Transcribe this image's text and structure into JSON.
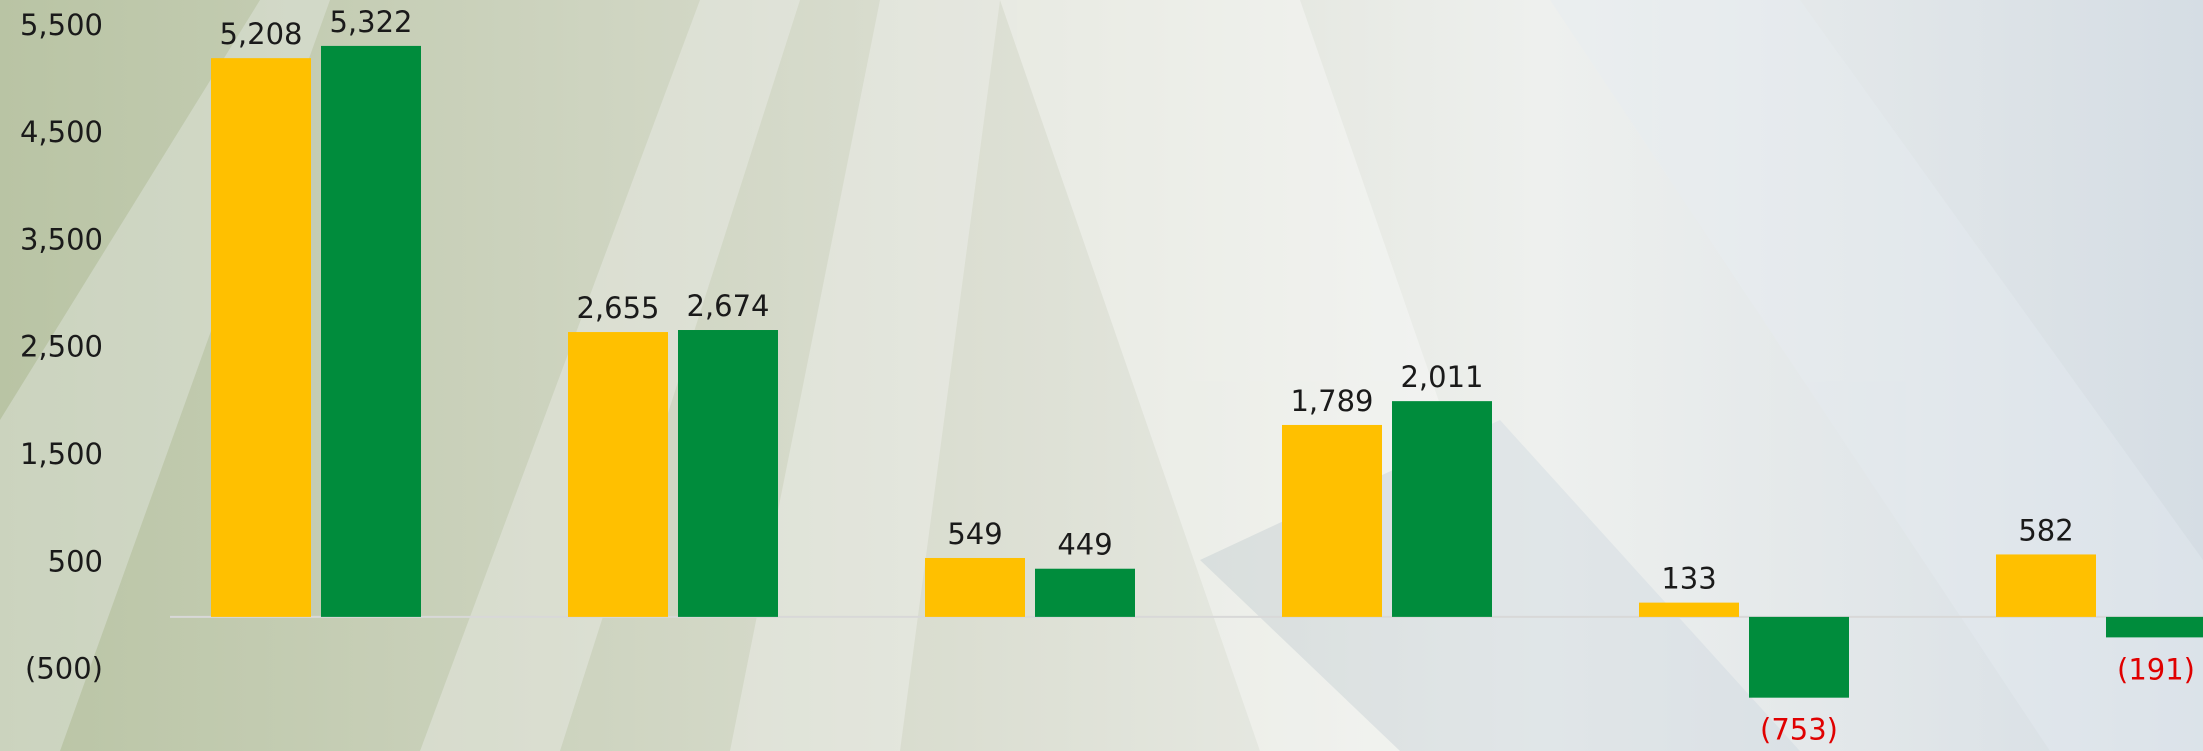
{
  "chart_data": {
    "type": "bar",
    "categories": [
      null,
      null,
      null,
      null,
      null,
      null
    ],
    "series": [
      {
        "color": "#FFC000",
        "values": [
          5208,
          2655,
          549,
          1789,
          133,
          582
        ],
        "value_labels": [
          "5,208",
          "2,655",
          "549",
          "1,789",
          "133",
          "582"
        ]
      },
      {
        "color": "#008C3C",
        "values": [
          5322,
          2674,
          449,
          2011,
          -753,
          -191
        ],
        "value_labels": [
          "5,322",
          "2,674",
          "449",
          "2,011",
          "(753)",
          "(191)"
        ]
      }
    ],
    "negative_label_color": "#E00000",
    "ylim": [
      -1250,
      5750
    ],
    "yticks": [
      {
        "value": 5500,
        "label": "5,500"
      },
      {
        "value": 4500,
        "label": "4,500"
      },
      {
        "value": 3500,
        "label": "3,500"
      },
      {
        "value": 2500,
        "label": "2,500"
      },
      {
        "value": 1500,
        "label": "1,500"
      },
      500,
      {
        "value": -500,
        "label": "(500)"
      }
    ],
    "grid": false
  }
}
